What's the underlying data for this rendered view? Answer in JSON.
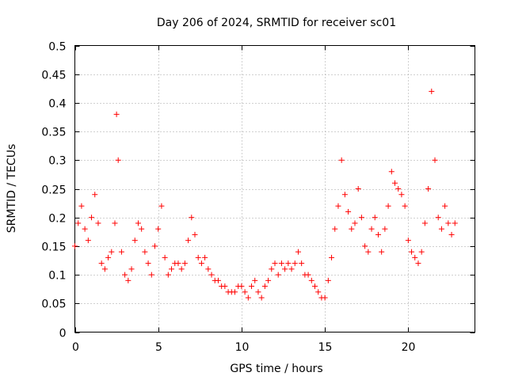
{
  "chart_data": {
    "type": "scatter",
    "title": "Day 206 of 2024, SRMTID for receiver sc01",
    "xlabel": "GPS time / hours",
    "ylabel": "SRMTID / TECUs",
    "xlim": [
      0,
      24
    ],
    "ylim": [
      0,
      0.5
    ],
    "xticks": [
      0,
      5,
      10,
      15,
      20
    ],
    "xtick_labels": [
      "0",
      "5",
      "10",
      "15",
      "20"
    ],
    "yticks": [
      0,
      0.05,
      0.1,
      0.15,
      0.2,
      0.25,
      0.3,
      0.35,
      0.4,
      0.45,
      0.5
    ],
    "ytick_labels": [
      "0",
      "0.05",
      "0.1",
      "0.15",
      "0.2",
      "0.25",
      "0.3",
      "0.35",
      "0.4",
      "0.45",
      "0.5"
    ],
    "grid": true,
    "marker": "+",
    "marker_color": "#ff0000",
    "series": [
      {
        "name": "SRMTID",
        "x": [
          0.0,
          0.2,
          0.4,
          0.6,
          0.8,
          1.0,
          1.2,
          1.4,
          1.6,
          1.8,
          2.0,
          2.2,
          2.4,
          2.5,
          2.6,
          2.8,
          3.0,
          3.2,
          3.4,
          3.6,
          3.8,
          4.0,
          4.2,
          4.4,
          4.6,
          4.8,
          5.0,
          5.2,
          5.4,
          5.6,
          5.8,
          6.0,
          6.2,
          6.4,
          6.6,
          6.8,
          7.0,
          7.2,
          7.4,
          7.6,
          7.8,
          8.0,
          8.2,
          8.4,
          8.6,
          8.8,
          9.0,
          9.2,
          9.4,
          9.6,
          9.8,
          10.0,
          10.2,
          10.4,
          10.6,
          10.8,
          11.0,
          11.2,
          11.4,
          11.6,
          11.8,
          12.0,
          12.2,
          12.4,
          12.6,
          12.8,
          13.0,
          13.2,
          13.4,
          13.6,
          13.8,
          14.0,
          14.2,
          14.4,
          14.6,
          14.8,
          15.0,
          15.2,
          15.4,
          15.6,
          15.8,
          16.0,
          16.2,
          16.4,
          16.6,
          16.8,
          17.0,
          17.2,
          17.4,
          17.6,
          17.8,
          18.0,
          18.2,
          18.4,
          18.6,
          18.8,
          19.0,
          19.2,
          19.4,
          19.6,
          19.8,
          20.0,
          20.2,
          20.4,
          20.6,
          20.8,
          21.0,
          21.2,
          21.4,
          21.6,
          21.8,
          22.0,
          22.2,
          22.4,
          22.6,
          22.8
        ],
        "y": [
          0.15,
          0.19,
          0.22,
          0.18,
          0.16,
          0.2,
          0.24,
          0.19,
          0.12,
          0.11,
          0.13,
          0.14,
          0.19,
          0.38,
          0.3,
          0.14,
          0.1,
          0.09,
          0.11,
          0.16,
          0.19,
          0.18,
          0.14,
          0.12,
          0.1,
          0.15,
          0.18,
          0.22,
          0.13,
          0.1,
          0.11,
          0.12,
          0.12,
          0.11,
          0.12,
          0.16,
          0.2,
          0.17,
          0.13,
          0.12,
          0.13,
          0.11,
          0.1,
          0.09,
          0.09,
          0.08,
          0.08,
          0.07,
          0.07,
          0.07,
          0.08,
          0.08,
          0.07,
          0.06,
          0.08,
          0.09,
          0.07,
          0.06,
          0.08,
          0.09,
          0.11,
          0.12,
          0.1,
          0.12,
          0.11,
          0.12,
          0.11,
          0.12,
          0.14,
          0.12,
          0.1,
          0.1,
          0.09,
          0.08,
          0.07,
          0.06,
          0.06,
          0.09,
          0.13,
          0.18,
          0.22,
          0.3,
          0.24,
          0.21,
          0.18,
          0.19,
          0.25,
          0.2,
          0.15,
          0.14,
          0.18,
          0.2,
          0.17,
          0.14,
          0.18,
          0.22,
          0.28,
          0.26,
          0.25,
          0.24,
          0.22,
          0.16,
          0.14,
          0.13,
          0.12,
          0.14,
          0.19,
          0.25,
          0.42,
          0.3,
          0.2,
          0.18,
          0.22,
          0.19,
          0.17,
          0.19
        ]
      }
    ]
  }
}
